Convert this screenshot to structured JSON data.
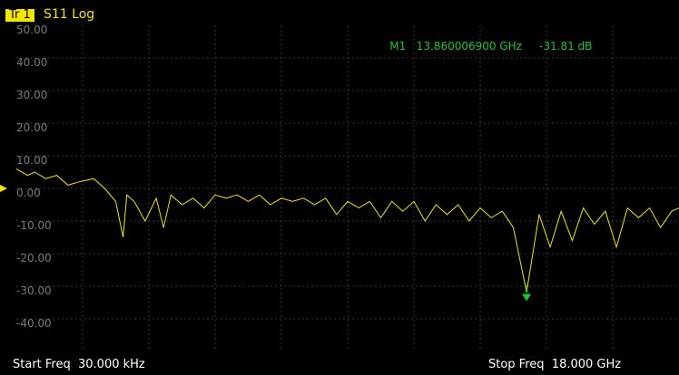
{
  "trace": {
    "badge": "Tr 1",
    "title": "S11 Log"
  },
  "marker": {
    "name": "M1",
    "freq": "13.860006900 GHz",
    "value": "-31.81 dB",
    "label": "1"
  },
  "footer": {
    "start": "Start Freq  30.000 kHz",
    "stop": "Stop Freq  18.000 GHz"
  },
  "colors": {
    "trace": "#f2e600",
    "marker": "#19c830",
    "grid": "#3a3a3a",
    "ylabel": "#7a7a7a"
  },
  "chart_data": {
    "type": "line",
    "y_ticks": [
      "50.00",
      "40.00",
      "30.00",
      "20.00",
      "10.00",
      "0.00",
      "-10.00",
      "-20.00",
      "-30.00",
      "-40.00"
    ],
    "ylim": [
      -50,
      50
    ],
    "xlim_ghz": [
      3e-05,
      18.0
    ],
    "grid": true,
    "series": [
      {
        "x": [
          3e-05,
          0.3,
          0.5,
          0.8,
          1.1,
          1.4,
          1.7,
          2.1,
          2.4,
          2.7,
          2.9,
          3.0,
          3.2,
          3.5,
          3.8,
          4.0,
          4.2,
          4.5,
          4.8,
          5.1,
          5.4,
          5.7,
          6.0,
          6.3,
          6.6,
          6.9,
          7.2,
          7.5,
          7.8,
          8.1,
          8.4,
          8.7,
          9.0,
          9.3,
          9.6,
          9.9,
          10.2,
          10.5,
          10.8,
          11.1,
          11.4,
          11.7,
          12.0,
          12.3,
          12.6,
          12.9,
          13.2,
          13.5,
          13.86,
          14.2,
          14.5,
          14.8,
          15.1,
          15.4,
          15.7,
          16.0,
          16.3,
          16.6,
          16.9,
          17.2,
          17.5,
          17.8,
          18.0
        ],
        "y": [
          6,
          4,
          5,
          3,
          4,
          1,
          2,
          3,
          0,
          -4,
          -15,
          -2,
          -4,
          -10,
          -3,
          -12,
          -2,
          -5,
          -3,
          -6,
          -2,
          -3,
          -2,
          -4,
          -2,
          -5,
          -3,
          -4,
          -3,
          -5,
          -3,
          -8,
          -4,
          -6,
          -4,
          -9,
          -4,
          -7,
          -4,
          -10,
          -5,
          -8,
          -5,
          -10,
          -6,
          -9,
          -7,
          -12,
          -31.8,
          -8,
          -18,
          -7,
          -16,
          -6,
          -11,
          -7,
          -18,
          -6,
          -9,
          -6,
          -12,
          -7,
          -6
        ]
      }
    ]
  }
}
